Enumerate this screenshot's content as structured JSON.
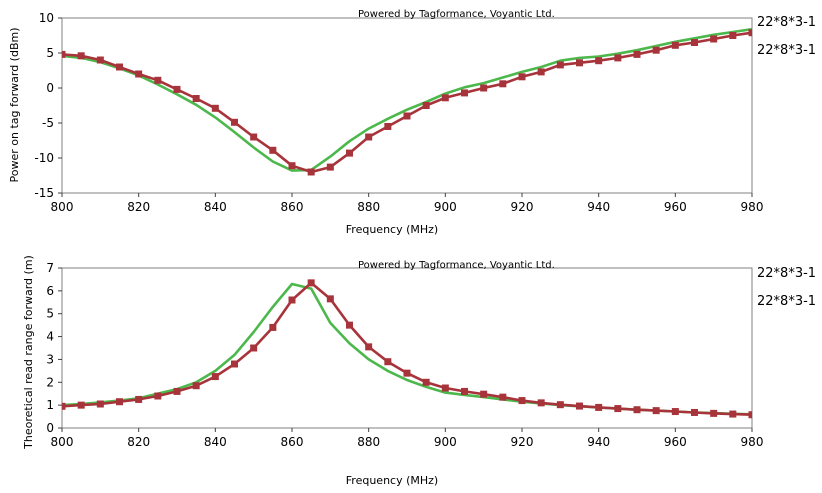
{
  "chart_data": [
    {
      "type": "line",
      "credit": "Powered by Tagformance, Voyantic Ltd.",
      "xlabel": "Frequency (MHz)",
      "ylabel": "Power on tag forward (dBm)",
      "xlim": [
        800,
        980
      ],
      "ylim": [
        -15,
        10
      ],
      "x_ticks": [
        "800",
        "820",
        "840",
        "860",
        "880",
        "900",
        "920",
        "940",
        "960",
        "980"
      ],
      "y_ticks": [
        "10",
        "5",
        "0",
        "-5",
        "-10",
        "-15"
      ],
      "grid": false,
      "legend_position": "right",
      "series": [
        {
          "name": "22*8*3-1",
          "color": "#4cb84c",
          "marker": "none",
          "x": [
            800,
            805,
            810,
            815,
            820,
            825,
            830,
            835,
            840,
            845,
            850,
            855,
            860,
            865,
            870,
            875,
            880,
            885,
            890,
            895,
            900,
            905,
            910,
            915,
            920,
            925,
            930,
            935,
            940,
            945,
            950,
            955,
            960,
            965,
            970,
            975,
            980
          ],
          "y": [
            4.6,
            4.3,
            3.7,
            2.8,
            1.8,
            0.5,
            -0.9,
            -2.4,
            -4.2,
            -6.3,
            -8.5,
            -10.5,
            -11.8,
            -11.7,
            -9.8,
            -7.6,
            -5.8,
            -4.4,
            -3.1,
            -2.0,
            -0.8,
            0.1,
            0.7,
            1.5,
            2.3,
            3.0,
            3.9,
            4.3,
            4.5,
            4.9,
            5.4,
            6.0,
            6.6,
            7.1,
            7.6,
            8.0,
            8.4
          ]
        },
        {
          "name": "22*8*3-1",
          "color": "#a8343b",
          "marker": "square",
          "x": [
            800,
            805,
            810,
            815,
            820,
            825,
            830,
            835,
            840,
            845,
            850,
            855,
            860,
            865,
            870,
            875,
            880,
            885,
            890,
            895,
            900,
            905,
            910,
            915,
            920,
            925,
            930,
            935,
            940,
            945,
            950,
            955,
            960,
            965,
            970,
            975,
            980
          ],
          "y": [
            4.8,
            4.6,
            4.0,
            3.0,
            2.0,
            1.1,
            -0.2,
            -1.5,
            -2.9,
            -4.9,
            -7.0,
            -8.9,
            -11.1,
            -12.0,
            -11.3,
            -9.3,
            -7.0,
            -5.5,
            -4.0,
            -2.5,
            -1.4,
            -0.7,
            0.0,
            0.6,
            1.6,
            2.3,
            3.3,
            3.6,
            3.9,
            4.3,
            4.8,
            5.4,
            6.1,
            6.5,
            7.0,
            7.5,
            7.9
          ]
        }
      ]
    },
    {
      "type": "line",
      "credit": "Powered by Tagformance, Voyantic Ltd.",
      "xlabel": "Frequency (MHz)",
      "ylabel": "Theoretical read range forward (m)",
      "xlim": [
        800,
        980
      ],
      "ylim": [
        0,
        7
      ],
      "x_ticks": [
        "800",
        "820",
        "840",
        "860",
        "880",
        "900",
        "920",
        "940",
        "960",
        "980"
      ],
      "y_ticks": [
        "7",
        "6",
        "5",
        "4",
        "3",
        "2",
        "1",
        "0"
      ],
      "grid": false,
      "legend_position": "right",
      "series": [
        {
          "name": "22*8*3-1",
          "color": "#4cb84c",
          "marker": "none",
          "x": [
            800,
            805,
            810,
            815,
            820,
            825,
            830,
            835,
            840,
            845,
            850,
            855,
            860,
            865,
            870,
            875,
            880,
            885,
            890,
            895,
            900,
            905,
            910,
            915,
            920,
            925,
            930,
            935,
            940,
            945,
            950,
            955,
            960,
            965,
            970,
            975,
            980
          ],
          "y": [
            1.0,
            1.05,
            1.12,
            1.2,
            1.3,
            1.5,
            1.7,
            2.0,
            2.5,
            3.2,
            4.2,
            5.3,
            6.3,
            6.1,
            4.6,
            3.7,
            3.0,
            2.5,
            2.1,
            1.8,
            1.55,
            1.45,
            1.35,
            1.25,
            1.15,
            1.07,
            1.0,
            0.95,
            0.9,
            0.85,
            0.8,
            0.76,
            0.72,
            0.68,
            0.65,
            0.62,
            0.6
          ]
        },
        {
          "name": "22*8*3-1",
          "color": "#a8343b",
          "marker": "square",
          "x": [
            800,
            805,
            810,
            815,
            820,
            825,
            830,
            835,
            840,
            845,
            850,
            855,
            860,
            865,
            870,
            875,
            880,
            885,
            890,
            895,
            900,
            905,
            910,
            915,
            920,
            925,
            930,
            935,
            940,
            945,
            950,
            955,
            960,
            965,
            970,
            975,
            980
          ],
          "y": [
            0.95,
            1.0,
            1.05,
            1.15,
            1.25,
            1.4,
            1.6,
            1.85,
            2.25,
            2.8,
            3.5,
            4.4,
            5.6,
            6.35,
            5.65,
            4.5,
            3.55,
            2.9,
            2.4,
            2.0,
            1.75,
            1.6,
            1.48,
            1.35,
            1.2,
            1.1,
            1.02,
            0.96,
            0.9,
            0.85,
            0.8,
            0.76,
            0.72,
            0.68,
            0.64,
            0.61,
            0.58
          ]
        }
      ]
    }
  ]
}
